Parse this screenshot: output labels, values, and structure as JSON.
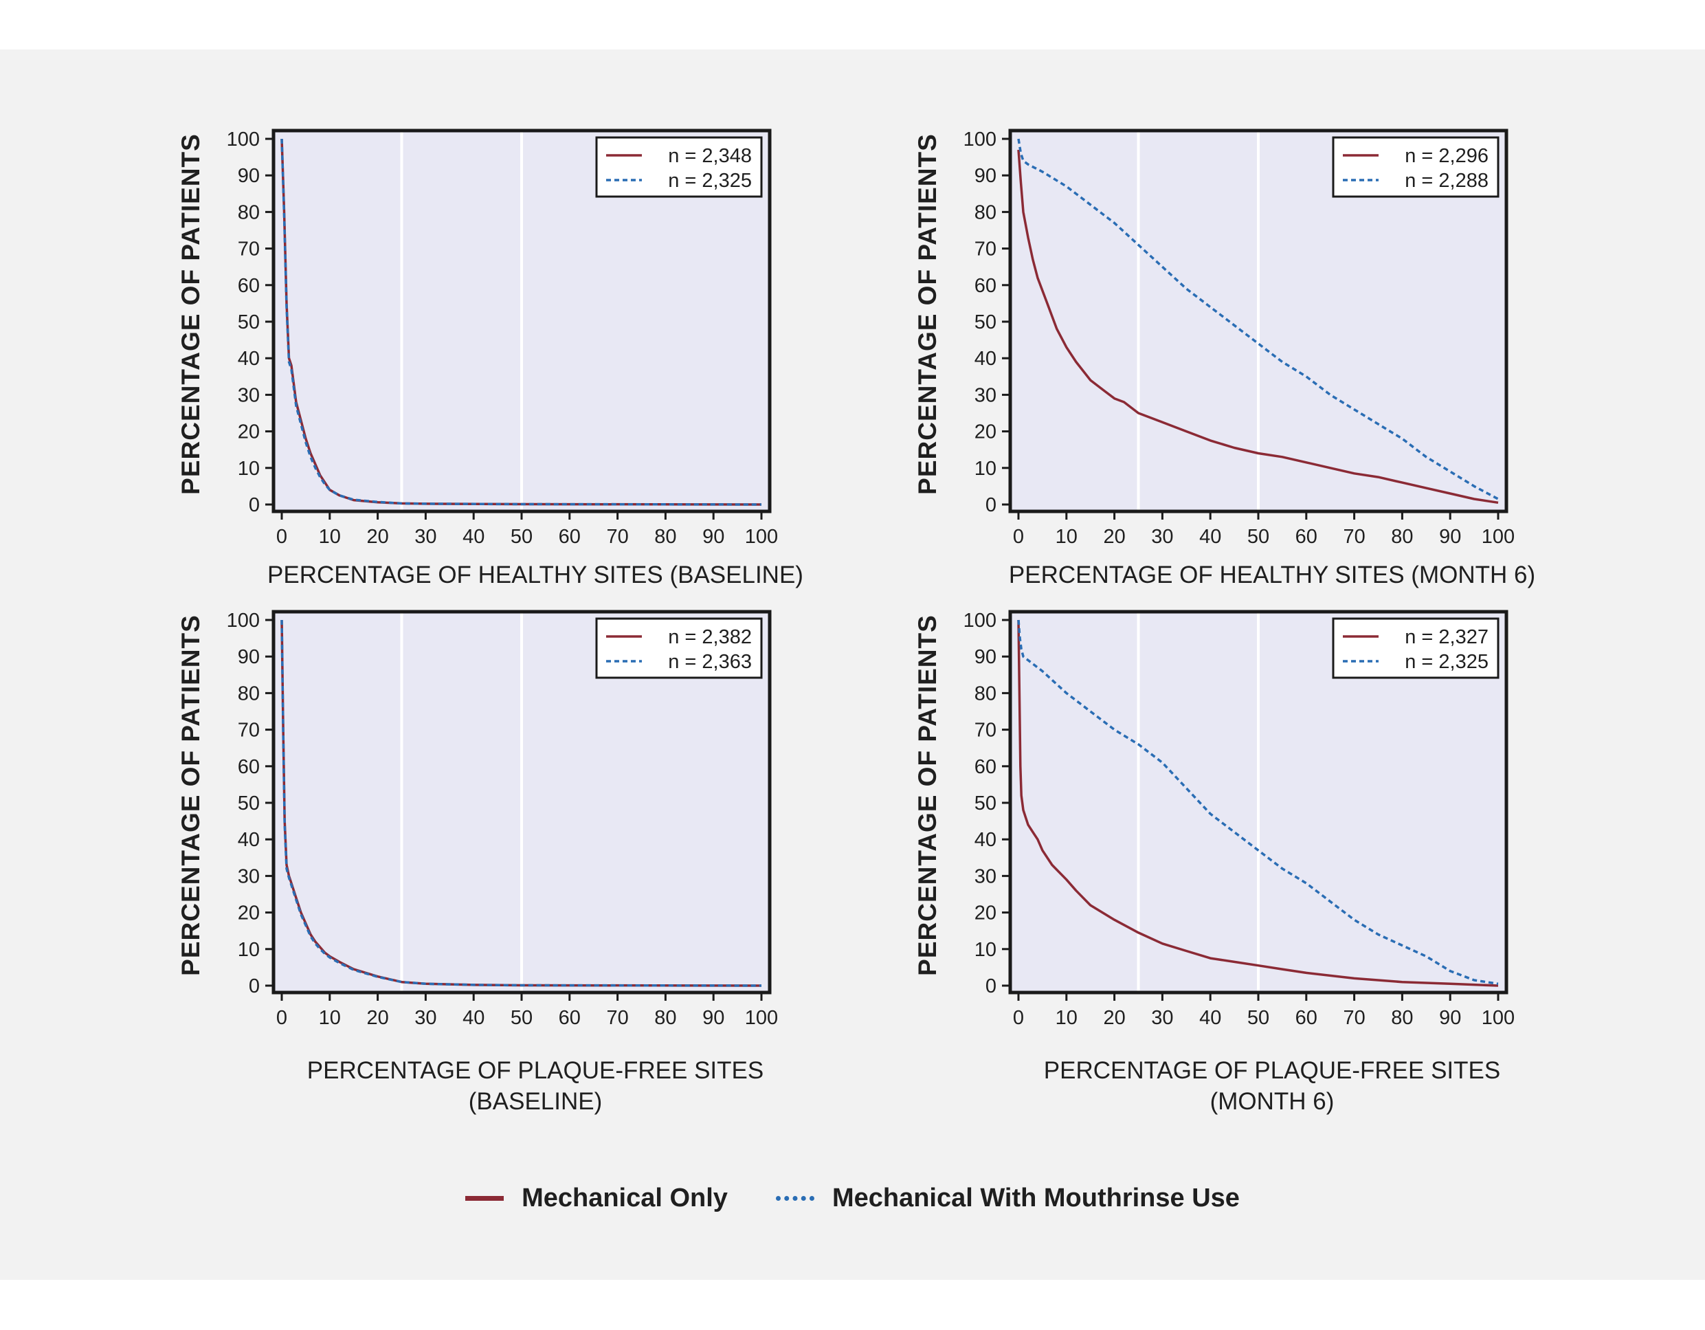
{
  "colors": {
    "mechanical_only": "#8b2a35",
    "mouthrinse": "#2a6db4",
    "plot_bg": "#e8e8f4",
    "page_bg": "#f2f2f2"
  },
  "legend": {
    "mechanical_only": "Mechanical Only",
    "mouthrinse": "Mechanical With Mouthrinse Use"
  },
  "chart_data": [
    {
      "type": "line",
      "id": "healthy-baseline",
      "xlabel": [
        "PERCENTAGE OF HEALTHY SITES (BASELINE)"
      ],
      "ylabel": "PERCENTAGE OF PATIENTS",
      "xlim": [
        0,
        100
      ],
      "ylim": [
        0,
        100
      ],
      "xticks": [
        0,
        10,
        20,
        30,
        40,
        50,
        60,
        70,
        80,
        90,
        100
      ],
      "yticks": [
        0,
        10,
        20,
        30,
        40,
        50,
        60,
        70,
        80,
        90,
        100
      ],
      "reference_lines_x": [
        25,
        50
      ],
      "series": [
        {
          "name": "Mechanical Only",
          "legend_label": "n = 2,348",
          "style": "solid",
          "x": [
            0,
            0.5,
            1,
            1.5,
            2,
            3,
            4,
            5,
            6,
            7,
            8,
            9,
            10,
            12,
            15,
            20,
            25,
            30,
            50,
            100
          ],
          "y": [
            100,
            80,
            55,
            40,
            38,
            28,
            23,
            18,
            14,
            11,
            8,
            6,
            4,
            2.5,
            1.2,
            0.6,
            0.3,
            0.2,
            0.1,
            0
          ]
        },
        {
          "name": "Mechanical With Mouthrinse Use",
          "legend_label": "n = 2,325",
          "style": "dashed",
          "x": [
            0,
            0.5,
            1,
            1.5,
            2,
            3,
            4,
            5,
            6,
            7,
            8,
            9,
            10,
            12,
            15,
            20,
            25,
            30,
            50,
            100
          ],
          "y": [
            100,
            79,
            54,
            39,
            37,
            27,
            22,
            17,
            13,
            10,
            7.5,
            5.5,
            4,
            2.5,
            1.3,
            0.7,
            0.3,
            0.2,
            0.1,
            0
          ]
        }
      ]
    },
    {
      "type": "line",
      "id": "healthy-month6",
      "xlabel": [
        "PERCENTAGE OF HEALTHY SITES (MONTH 6)"
      ],
      "ylabel": "PERCENTAGE OF PATIENTS",
      "xlim": [
        0,
        100
      ],
      "ylim": [
        0,
        100
      ],
      "xticks": [
        0,
        10,
        20,
        30,
        40,
        50,
        60,
        70,
        80,
        90,
        100
      ],
      "yticks": [
        0,
        10,
        20,
        30,
        40,
        50,
        60,
        70,
        80,
        90,
        100
      ],
      "reference_lines_x": [
        25,
        50
      ],
      "series": [
        {
          "name": "Mechanical Only",
          "legend_label": "n = 2,296",
          "style": "solid",
          "x": [
            0,
            0.5,
            1,
            2,
            3,
            4,
            6,
            8,
            10,
            12,
            15,
            18,
            20,
            22,
            25,
            30,
            35,
            40,
            45,
            50,
            55,
            60,
            65,
            70,
            75,
            80,
            85,
            90,
            95,
            100
          ],
          "y": [
            97,
            88,
            80,
            73,
            67,
            62,
            55,
            48,
            43,
            39,
            34,
            31,
            29,
            28,
            25,
            22.5,
            20,
            17.5,
            15.5,
            14,
            13,
            11.5,
            10,
            8.5,
            7.5,
            6,
            4.5,
            3,
            1.5,
            0.5
          ]
        },
        {
          "name": "Mechanical With Mouthrinse Use",
          "legend_label": "n = 2,288",
          "style": "dashed",
          "x": [
            0,
            0.5,
            1,
            2,
            5,
            10,
            15,
            20,
            25,
            30,
            35,
            40,
            45,
            50,
            55,
            60,
            65,
            70,
            75,
            80,
            85,
            90,
            95,
            100
          ],
          "y": [
            100,
            96,
            94,
            93,
            91,
            87,
            82,
            77,
            71,
            65,
            59,
            54,
            49,
            44,
            39,
            35,
            30,
            26,
            22,
            18,
            13,
            9,
            5,
            1.5
          ]
        }
      ]
    },
    {
      "type": "line",
      "id": "plaque-baseline",
      "xlabel": [
        "PERCENTAGE OF PLAQUE-FREE SITES",
        "(BASELINE)"
      ],
      "ylabel": "PERCENTAGE OF PATIENTS",
      "xlim": [
        0,
        100
      ],
      "ylim": [
        0,
        100
      ],
      "xticks": [
        0,
        10,
        20,
        30,
        40,
        50,
        60,
        70,
        80,
        90,
        100
      ],
      "yticks": [
        0,
        10,
        20,
        30,
        40,
        50,
        60,
        70,
        80,
        90,
        100
      ],
      "reference_lines_x": [
        25,
        50
      ],
      "series": [
        {
          "name": "Mechanical Only",
          "legend_label": "n = 2,382",
          "style": "solid",
          "x": [
            0,
            0.3,
            0.6,
            1,
            1.5,
            2,
            3,
            4,
            5,
            6,
            7,
            8,
            9,
            10,
            12,
            15,
            20,
            25,
            30,
            40,
            50,
            100
          ],
          "y": [
            100,
            70,
            45,
            33,
            30,
            28,
            24,
            20,
            17,
            14,
            12,
            10.5,
            9,
            8,
            6.5,
            4.5,
            2.5,
            1,
            0.5,
            0.2,
            0.1,
            0
          ]
        },
        {
          "name": "Mechanical With Mouthrinse Use",
          "legend_label": "n = 2,363",
          "style": "dashed",
          "x": [
            0,
            0.3,
            0.6,
            1,
            1.5,
            2,
            3,
            4,
            5,
            6,
            7,
            8,
            9,
            10,
            12,
            15,
            20,
            25,
            30,
            40,
            50,
            100
          ],
          "y": [
            100,
            69,
            44,
            32,
            29.5,
            27.5,
            23.5,
            19.5,
            16.5,
            13.5,
            11.5,
            10,
            8.7,
            7.7,
            6.2,
            4.3,
            2.4,
            1,
            0.5,
            0.2,
            0.1,
            0
          ]
        }
      ]
    },
    {
      "type": "line",
      "id": "plaque-month6",
      "xlabel": [
        "PERCENTAGE OF PLAQUE-FREE SITES",
        "(MONTH 6)"
      ],
      "ylabel": "PERCENTAGE OF PATIENTS",
      "xlim": [
        0,
        100
      ],
      "ylim": [
        0,
        100
      ],
      "xticks": [
        0,
        10,
        20,
        30,
        40,
        50,
        60,
        70,
        80,
        90,
        100
      ],
      "yticks": [
        0,
        10,
        20,
        30,
        40,
        50,
        60,
        70,
        80,
        90,
        100
      ],
      "reference_lines_x": [
        25,
        50
      ],
      "series": [
        {
          "name": "Mechanical Only",
          "legend_label": "n = 2,327",
          "style": "solid",
          "x": [
            0,
            0.2,
            0.4,
            0.6,
            1,
            1.5,
            2,
            3,
            4,
            5,
            7,
            10,
            12,
            15,
            20,
            25,
            30,
            35,
            40,
            45,
            50,
            55,
            60,
            70,
            80,
            90,
            100
          ],
          "y": [
            100,
            80,
            60,
            52,
            48,
            46,
            44,
            42,
            40,
            37,
            33,
            29,
            26,
            22,
            18,
            14.5,
            11.5,
            9.5,
            7.5,
            6.5,
            5.5,
            4.5,
            3.5,
            2,
            1,
            0.5,
            0
          ]
        },
        {
          "name": "Mechanical With Mouthrinse Use",
          "legend_label": "n = 2,325",
          "style": "dashed",
          "x": [
            0,
            0.3,
            0.6,
            1,
            2,
            5,
            10,
            15,
            20,
            25,
            30,
            35,
            40,
            45,
            50,
            55,
            60,
            65,
            70,
            75,
            80,
            85,
            90,
            95,
            100
          ],
          "y": [
            100,
            95,
            92,
            90,
            89,
            86,
            80,
            75,
            70,
            66,
            61,
            54,
            47,
            42,
            37,
            32,
            28,
            23,
            18,
            14,
            11,
            8,
            4,
            1.5,
            0.5
          ]
        }
      ]
    }
  ]
}
